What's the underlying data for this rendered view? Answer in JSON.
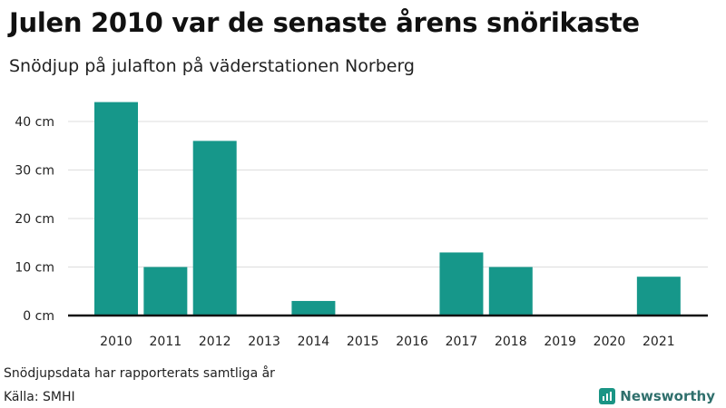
{
  "title": "Julen 2010 var de senaste årens snörikaste",
  "subtitle": "Snödjup på julafton på väderstationen Norberg",
  "footnote": "Snödjupsdata har rapporterats samtliga år",
  "source": "Källa: SMHI",
  "brand": {
    "name": "Newsworthy",
    "icon": "bar-chart-icon"
  },
  "colors": {
    "bar": "#16978a",
    "grid": "#dddddd",
    "axis": "#111111"
  },
  "chart_data": {
    "type": "bar",
    "title": "Julen 2010 var de senaste årens snörikaste",
    "subtitle": "Snödjup på julafton på väderstationen Norberg",
    "categories": [
      "2010",
      "2011",
      "2012",
      "2013",
      "2014",
      "2015",
      "2016",
      "2017",
      "2018",
      "2019",
      "2020",
      "2021"
    ],
    "values": [
      44,
      10,
      36,
      0,
      3,
      0,
      0,
      13,
      10,
      0,
      0,
      8
    ],
    "yticks": [
      0,
      10,
      20,
      30,
      40
    ],
    "ytick_labels": [
      "0 cm",
      "10 cm",
      "20 cm",
      "30 cm",
      "40 cm"
    ],
    "ylim": [
      0,
      45
    ],
    "xlabel": "",
    "ylabel": "",
    "grid": true,
    "legend": "none"
  }
}
